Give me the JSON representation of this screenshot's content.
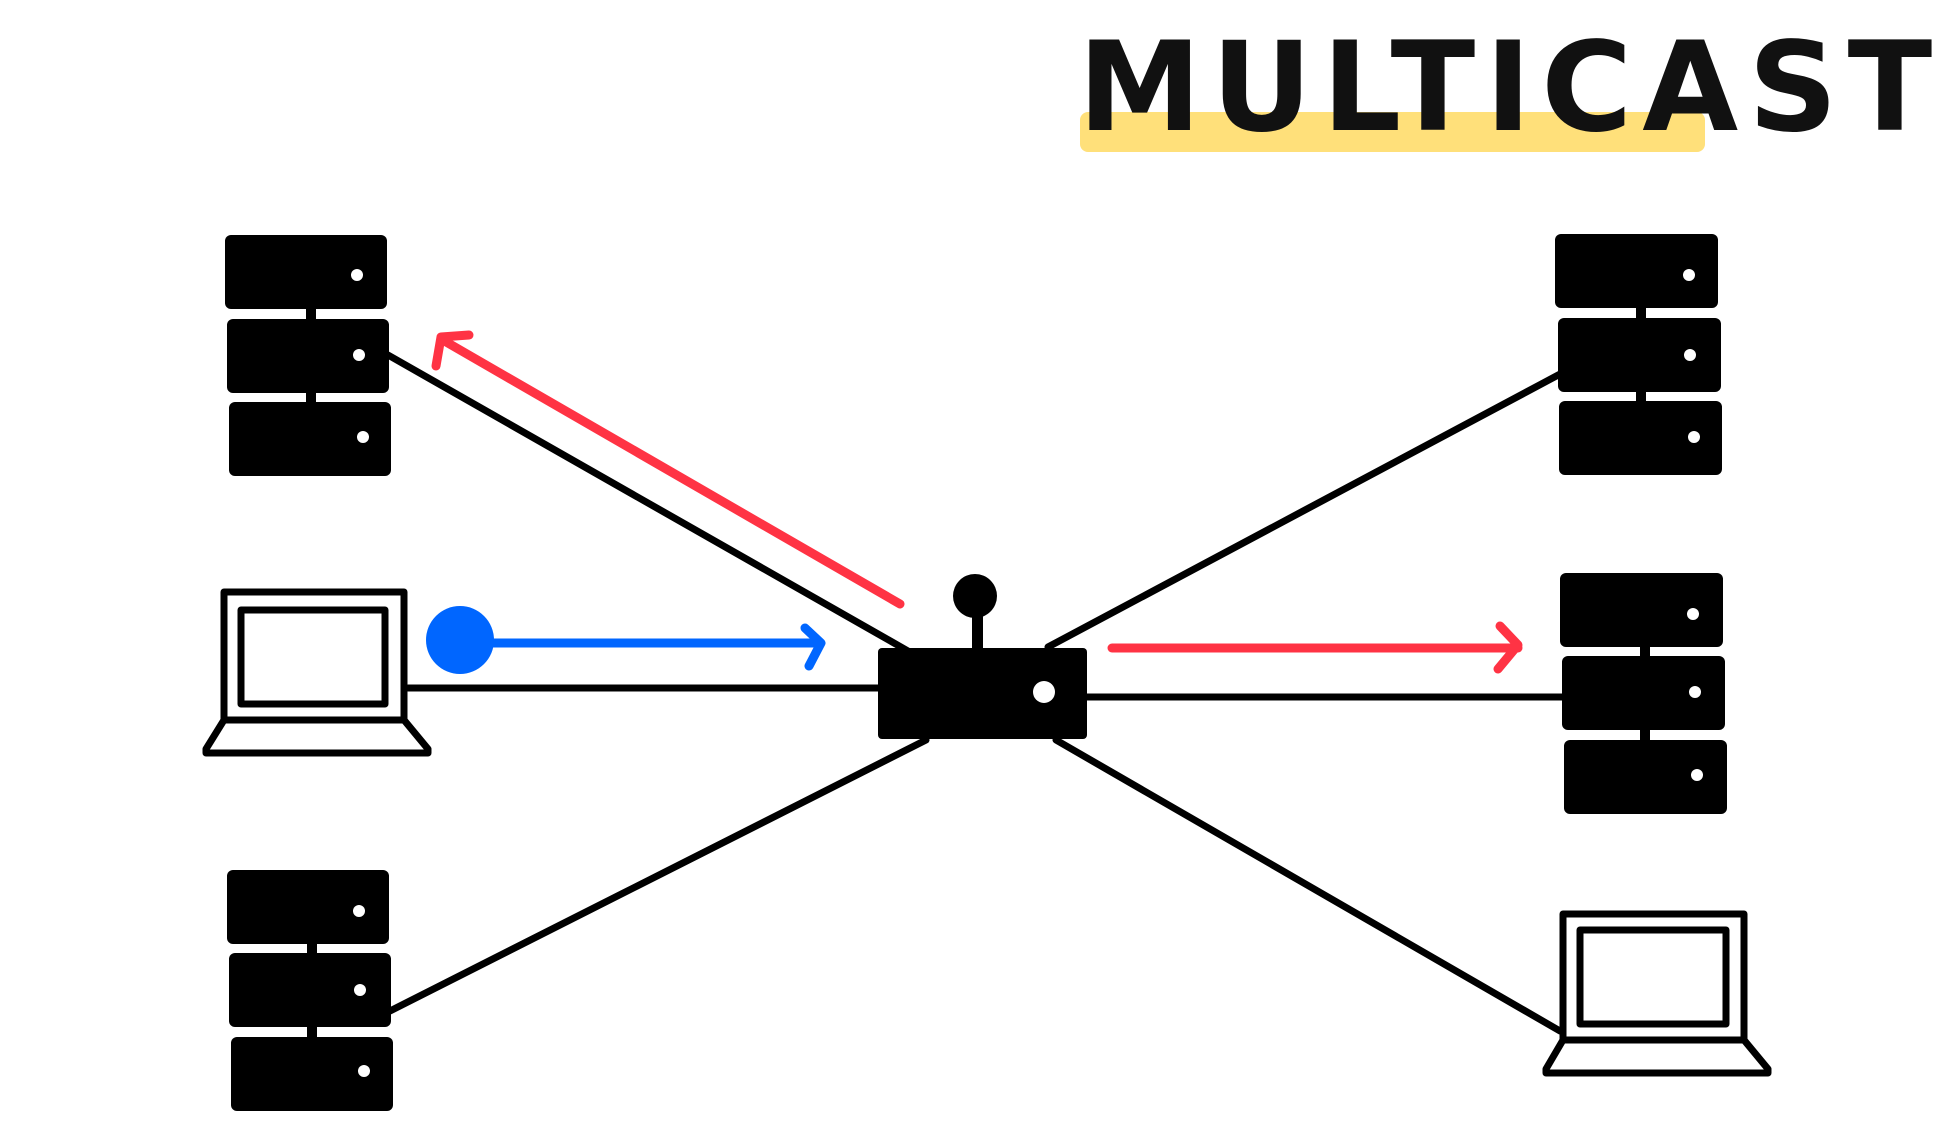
{
  "title": "MULTICAST",
  "colors": {
    "highlight": "#FFE07A",
    "sender_flow": "#0066FF",
    "multicast_flow": "#FF3344",
    "ink": "#000000",
    "background": "#FFFFFF"
  },
  "icons": {
    "router": "router-icon",
    "server": "server-rack-icon",
    "laptop": "laptop-icon",
    "source_dot": "source-dot-icon"
  },
  "nodes": [
    {
      "id": "server-top-left",
      "kind": "server"
    },
    {
      "id": "laptop-sender",
      "kind": "laptop",
      "role": "source"
    },
    {
      "id": "server-bottom-left",
      "kind": "server"
    },
    {
      "id": "router",
      "kind": "router"
    },
    {
      "id": "server-top-right",
      "kind": "server"
    },
    {
      "id": "server-middle-right",
      "kind": "server"
    },
    {
      "id": "laptop-bottom-right",
      "kind": "laptop"
    }
  ],
  "links": [
    {
      "from": "router",
      "to": "server-top-left"
    },
    {
      "from": "router",
      "to": "laptop-sender"
    },
    {
      "from": "router",
      "to": "server-bottom-left"
    },
    {
      "from": "router",
      "to": "server-top-right"
    },
    {
      "from": "router",
      "to": "server-middle-right"
    },
    {
      "from": "router",
      "to": "laptop-bottom-right"
    }
  ],
  "flows": [
    {
      "from": "laptop-sender",
      "to": "router",
      "color": "blue"
    },
    {
      "from": "router",
      "to": "server-top-left",
      "color": "red"
    },
    {
      "from": "router",
      "to": "server-middle-right",
      "color": "red"
    }
  ]
}
